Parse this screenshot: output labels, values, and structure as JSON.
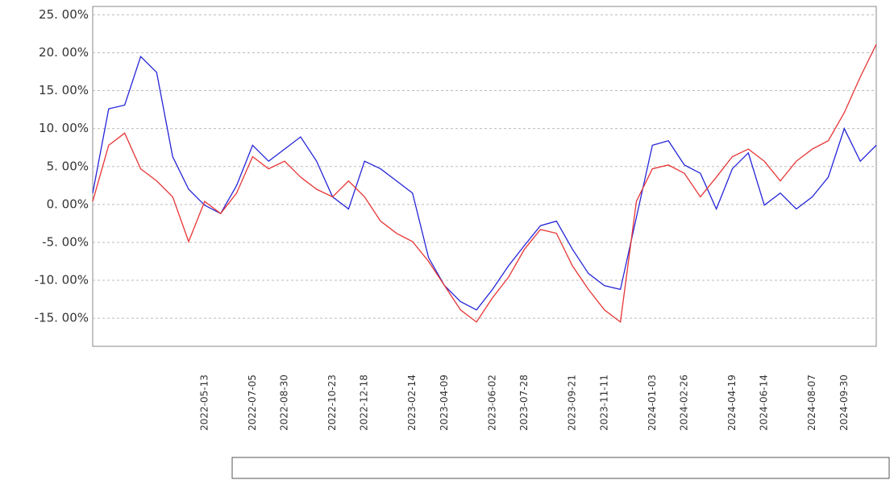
{
  "chart_data": {
    "type": "line",
    "categories": [
      null,
      null,
      null,
      null,
      null,
      null,
      null,
      "2022-05-13",
      null,
      null,
      "2022-07-05",
      null,
      "2022-08-30",
      null,
      null,
      "2022-10-23",
      null,
      "2022-12-18",
      null,
      null,
      "2023-02-14",
      null,
      "2023-04-09",
      null,
      null,
      "2023-06-02",
      null,
      "2023-07-28",
      null,
      null,
      "2023-09-21",
      null,
      "2023-11-11",
      null,
      null,
      "2024-01-03",
      null,
      "2024-02-26",
      null,
      null,
      "2024-04-19",
      null,
      "2024-06-14",
      null,
      null,
      "2024-08-07",
      null,
      "2024-09-30",
      null,
      null
    ],
    "series": [
      {
        "color": "#2424d8",
        "values": [
          1.5,
          12.6,
          13.1,
          19.5,
          17.4,
          6.3,
          2.0,
          -0.1,
          -1.2,
          2.5,
          7.8,
          5.7,
          7.3,
          8.9,
          5.7,
          1.0,
          -0.6,
          5.7,
          4.7,
          3.1,
          1.5,
          -7.0,
          -10.7,
          -12.8,
          -13.9,
          -11.2,
          -8.1,
          -5.4,
          -2.8,
          -2.2,
          -5.9,
          -9.1,
          -10.7,
          -11.2,
          -1.7,
          7.8,
          8.4,
          5.2,
          4.1,
          -0.6,
          4.7,
          6.8,
          -0.1,
          1.5,
          -0.6,
          1.0,
          3.6,
          10.0,
          5.7,
          7.8
        ]
      },
      {
        "color": "#e83434",
        "values": [
          0.4,
          7.8,
          9.4,
          4.7,
          3.1,
          1.0,
          -4.9,
          0.4,
          -1.2,
          1.5,
          6.3,
          4.7,
          5.7,
          3.6,
          2.0,
          1.0,
          3.1,
          1.0,
          -2.2,
          -3.8,
          -4.9,
          -7.5,
          -10.7,
          -13.9,
          -15.5,
          -12.3,
          -9.6,
          -5.9,
          -3.3,
          -3.8,
          -8.1,
          -11.2,
          -13.9,
          -15.5,
          0.4,
          4.7,
          5.2,
          4.1,
          1.0,
          3.6,
          6.3,
          7.3,
          5.7,
          3.1,
          5.7,
          7.3,
          8.4,
          12.1,
          16.8,
          21.1
        ]
      }
    ],
    "ylim": [
      -18.7,
      26.1
    ],
    "yticks": [
      {
        "value": -15,
        "label": "-15. 00%"
      },
      {
        "value": -10,
        "label": "-10. 00%"
      },
      {
        "value": -5,
        "label": "-5. 00%"
      },
      {
        "value": 0,
        "label": "0. 00%"
      },
      {
        "value": 5,
        "label": "5. 00%"
      },
      {
        "value": 10,
        "label": "10. 00%"
      },
      {
        "value": 15,
        "label": "15. 00%"
      },
      {
        "value": 20,
        "label": "20. 00%"
      },
      {
        "value": 25,
        "label": "25. 00%"
      }
    ],
    "grid": true
  }
}
